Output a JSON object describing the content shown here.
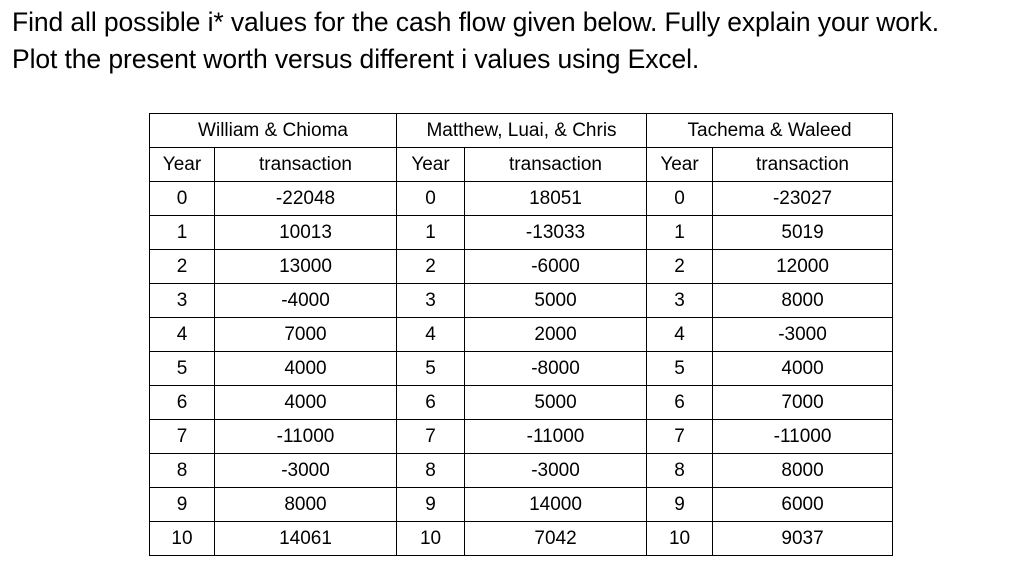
{
  "problem": {
    "line1": "Find all possible i* values for the cash flow given below. Fully explain your work.",
    "line2": "Plot the present worth versus different i values using Excel."
  },
  "table": {
    "groups": [
      {
        "name": "William & Chioma"
      },
      {
        "name": "Matthew, Luai, & Chris"
      },
      {
        "name": "Tachema & Waleed"
      }
    ],
    "subheaders": {
      "year": "Year",
      "transaction": "transaction"
    },
    "rows": [
      {
        "year": "0",
        "t1": "-22048",
        "t2": "18051",
        "t3": "-23027"
      },
      {
        "year": "1",
        "t1": "10013",
        "t2": "-13033",
        "t3": "5019"
      },
      {
        "year": "2",
        "t1": "13000",
        "t2": "-6000",
        "t3": "12000"
      },
      {
        "year": "3",
        "t1": "-4000",
        "t2": "5000",
        "t3": "8000"
      },
      {
        "year": "4",
        "t1": "7000",
        "t2": "2000",
        "t3": "-3000"
      },
      {
        "year": "5",
        "t1": "4000",
        "t2": "-8000",
        "t3": "4000"
      },
      {
        "year": "6",
        "t1": "4000",
        "t2": "5000",
        "t3": "7000"
      },
      {
        "year": "7",
        "t1": "-11000",
        "t2": "-11000",
        "t3": "-11000"
      },
      {
        "year": "8",
        "t1": "-3000",
        "t2": "-3000",
        "t3": "8000"
      },
      {
        "year": "9",
        "t1": "8000",
        "t2": "14000",
        "t3": "6000"
      },
      {
        "year": "10",
        "t1": "14061",
        "t2": "7042",
        "t3": "9037"
      }
    ]
  }
}
